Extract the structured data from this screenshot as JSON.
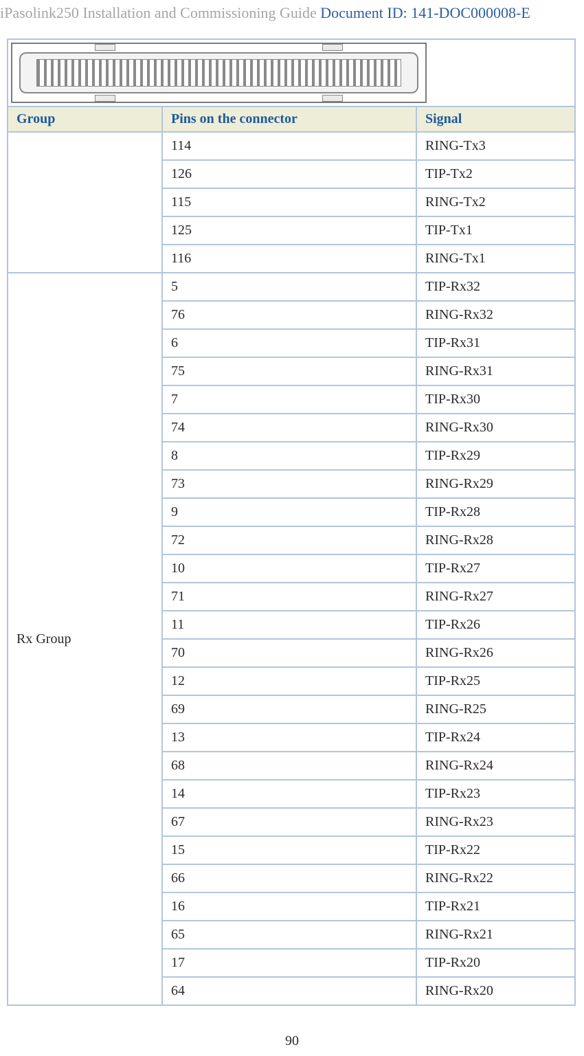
{
  "header": {
    "left_gray": "iPasolink250 Installation and Commissioning Guide ",
    "right_blue": "Document ID: 141-DOC000008-E"
  },
  "table": {
    "columns": [
      "Group",
      "Pins on the connector",
      "Signal"
    ],
    "group_tx_rows": [
      {
        "pin": "114",
        "signal": "RING-Tx3"
      },
      {
        "pin": "126",
        "signal": "TIP-Tx2"
      },
      {
        "pin": "115",
        "signal": "RING-Tx2"
      },
      {
        "pin": "125",
        "signal": "TIP-Tx1"
      },
      {
        "pin": "116",
        "signal": "RING-Tx1"
      }
    ],
    "group_rx_label": "Rx Group",
    "group_rx_rows": [
      {
        "pin": "5",
        "signal": "TIP-Rx32"
      },
      {
        "pin": "76",
        "signal": "RING-Rx32"
      },
      {
        "pin": "6",
        "signal": "TIP-Rx31"
      },
      {
        "pin": "75",
        "signal": "RING-Rx31"
      },
      {
        "pin": "7",
        "signal": "TIP-Rx30"
      },
      {
        "pin": "74",
        "signal": "RING-Rx30"
      },
      {
        "pin": "8",
        "signal": "TIP-Rx29"
      },
      {
        "pin": "73",
        "signal": "RING-Rx29"
      },
      {
        "pin": "9",
        "signal": "TIP-Rx28"
      },
      {
        "pin": "72",
        "signal": "RING-Rx28"
      },
      {
        "pin": "10",
        "signal": "TIP-Rx27"
      },
      {
        "pin": "71",
        "signal": "RING-Rx27"
      },
      {
        "pin": "11",
        "signal": "TIP-Rx26"
      },
      {
        "pin": "70",
        "signal": "RING-Rx26"
      },
      {
        "pin": "12",
        "signal": "TIP-Rx25"
      },
      {
        "pin": "69",
        "signal": "RING-R25"
      },
      {
        "pin": "13",
        "signal": "TIP-Rx24"
      },
      {
        "pin": "68",
        "signal": "RING-Rx24"
      },
      {
        "pin": "14",
        "signal": "TIP-Rx23"
      },
      {
        "pin": "67",
        "signal": "RING-Rx23"
      },
      {
        "pin": "15",
        "signal": "TIP-Rx22"
      },
      {
        "pin": "66",
        "signal": "RING-Rx22"
      },
      {
        "pin": "16",
        "signal": "TIP-Rx21"
      },
      {
        "pin": "65",
        "signal": "RING-Rx21"
      },
      {
        "pin": "17",
        "signal": "TIP-Rx20"
      },
      {
        "pin": "64",
        "signal": "RING-Rx20"
      }
    ]
  },
  "page_number": "90",
  "colors": {
    "header_gray": "#a5a5a5",
    "header_blue": "#2e5e9e",
    "table_border": "#b3c5dd",
    "table_header_bg": "#eeeed8",
    "table_header_fg": "#1e5a9c",
    "text": "#2a2a2a"
  }
}
